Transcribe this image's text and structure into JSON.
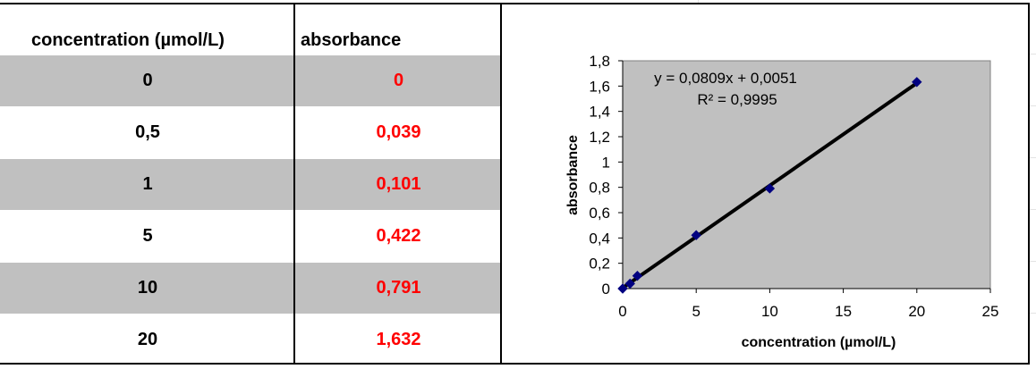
{
  "table": {
    "headers": {
      "concentration": "concentration (µmol/L)",
      "absorbance": "absorbance"
    },
    "rows": [
      {
        "concentration": "0",
        "absorbance": "0"
      },
      {
        "concentration": "0,5",
        "absorbance": "0,039"
      },
      {
        "concentration": "1",
        "absorbance": "0,101"
      },
      {
        "concentration": "5",
        "absorbance": "0,422"
      },
      {
        "concentration": "10",
        "absorbance": "0,791"
      },
      {
        "concentration": "20",
        "absorbance": "1,632"
      }
    ]
  },
  "colors": {
    "shaded_row": "#c0c0c0",
    "absorbance_text": "#ff0000",
    "plot_area": "#c0c0c0",
    "marker": "#000080",
    "trendline": "#000000"
  },
  "chart_data": {
    "type": "scatter",
    "xlabel": "concentration (µmol/L)",
    "ylabel": "absorbance",
    "xlim": [
      0,
      25
    ],
    "ylim": [
      0,
      1.8
    ],
    "x_ticks": [
      "0",
      "5",
      "10",
      "15",
      "20",
      "25"
    ],
    "y_ticks": [
      "0",
      "0,2",
      "0,4",
      "0,6",
      "0,8",
      "1",
      "1,2",
      "1,4",
      "1,6",
      "1,8"
    ],
    "x_tick_values": [
      0,
      5,
      10,
      15,
      20,
      25
    ],
    "y_tick_values": [
      0,
      0.2,
      0.4,
      0.6,
      0.8,
      1.0,
      1.2,
      1.4,
      1.6,
      1.8
    ],
    "series": [
      {
        "x": [
          0,
          0.5,
          1,
          5,
          10,
          20
        ],
        "y": [
          0,
          0.039,
          0.101,
          0.422,
          0.791,
          1.632
        ],
        "marker": "diamond"
      }
    ],
    "trendline": {
      "slope": 0.0809,
      "intercept": 0.0051,
      "x_range": [
        0,
        20
      ],
      "equation": "y = 0,0809x + 0,0051",
      "r_squared": "R² = 0,9995"
    },
    "grid": false,
    "legend": "none"
  }
}
